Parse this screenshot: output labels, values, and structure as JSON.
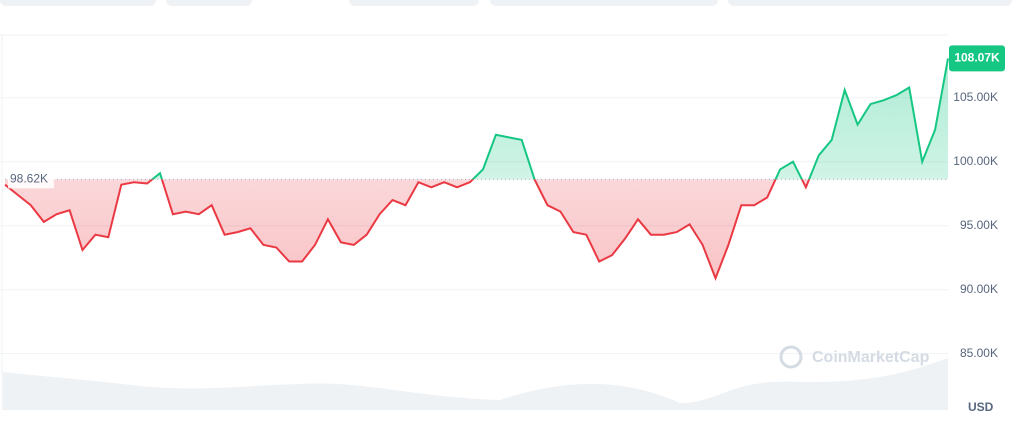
{
  "chart_data": {
    "type": "line",
    "values": [
      98200,
      97400,
      96600,
      95300,
      95900,
      96200,
      93100,
      94300,
      94100,
      98200,
      98400,
      98300,
      99100,
      95900,
      96100,
      95900,
      96600,
      94300,
      94500,
      94800,
      93500,
      93300,
      92200,
      92200,
      93500,
      95500,
      93700,
      93500,
      94300,
      95900,
      97000,
      96600,
      98400,
      98000,
      98400,
      98000,
      98400,
      99400,
      102100,
      101900,
      101700,
      98600,
      96600,
      96100,
      94500,
      94300,
      92200,
      92700,
      94000,
      95500,
      94300,
      94300,
      94500,
      95100,
      93500,
      90900,
      93500,
      96600,
      96600,
      97200,
      99400,
      100000,
      98000,
      100500,
      101700,
      105600,
      102900,
      104500,
      104800,
      105200,
      105800,
      100000,
      102500,
      108070
    ],
    "baseline": {
      "value": 98620,
      "label": "98.62K"
    },
    "last_value_label": "108.07K",
    "ylim": [
      80600,
      109900
    ],
    "yticks": [
      {
        "value": 85000,
        "label": "85.00K"
      },
      {
        "value": 90000,
        "label": "90.00K"
      },
      {
        "value": 95000,
        "label": "95.00K"
      },
      {
        "value": 100000,
        "label": "100.00K"
      },
      {
        "value": 105000,
        "label": "105.00K"
      }
    ],
    "unit": "USD",
    "watermark": "CoinMarketCap",
    "colors": {
      "up": "#16c784",
      "down": "#ea3943"
    }
  }
}
